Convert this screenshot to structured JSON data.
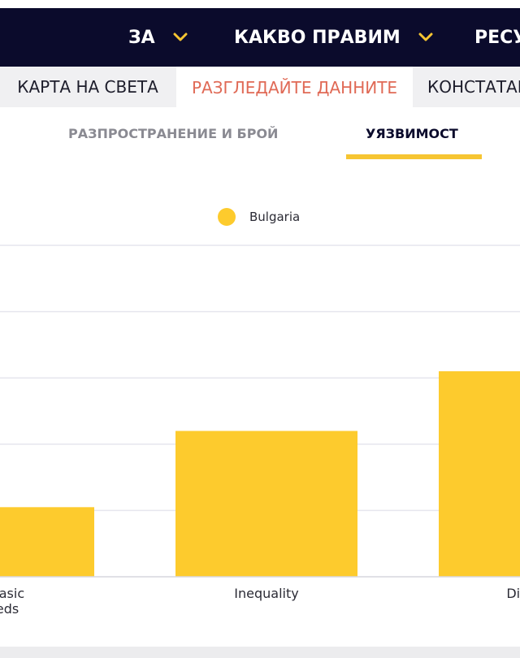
{
  "topnav": {
    "items": [
      {
        "label": "ЗА"
      },
      {
        "label": "КАКВО ПРАВИМ"
      },
      {
        "label": "РЕСУ"
      }
    ],
    "accent_color": "#f6c532",
    "background_color": "#0b0b2c"
  },
  "subtabs": {
    "items": [
      {
        "label": "КАРТА НА СВЕТА"
      },
      {
        "label": "РАЗГЛЕДАЙТЕ ДАННИТЕ"
      },
      {
        "label": "КОНСТАТАЦ"
      }
    ],
    "active_color": "#e06a56"
  },
  "section_tabs": {
    "items": [
      {
        "label": "РАЗПРОСТРАНЕНИЕ И БРОЙ"
      },
      {
        "label": "УЯЗВИМОСТ"
      }
    ],
    "active": "УЯЗВИМОСТ"
  },
  "chart_data": {
    "type": "bar",
    "legend": {
      "entries": [
        "Bulgaria"
      ],
      "placement": "top-center"
    },
    "categories": [
      "f basic\n  eds",
      "Inequality",
      "Disenfr\n  Gr"
    ],
    "series": [
      {
        "name": "Bulgaria",
        "values": [
          1.05,
          2.2,
          3.1
        ],
        "color": "#fdcb2d"
      }
    ],
    "ylim": [
      0,
      5
    ],
    "grid": true
  }
}
